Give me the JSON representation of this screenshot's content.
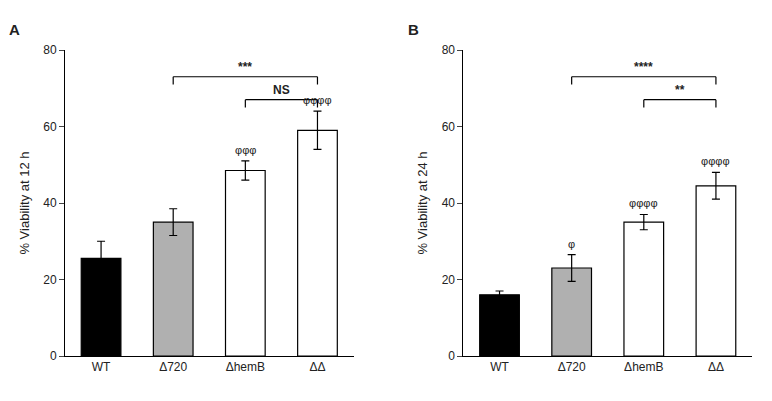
{
  "chart_data": [
    {
      "type": "bar",
      "title": "A",
      "categories": [
        "WT",
        "Δ720",
        "ΔhemB",
        "ΔΔ"
      ],
      "values": [
        25.5,
        35.0,
        48.5,
        59.0
      ],
      "errors": [
        4.5,
        3.5,
        2.5,
        5.0
      ],
      "colors": [
        "black",
        "#b0b0b0",
        "white",
        "white"
      ],
      "ylabel": "% Viability at 12 h",
      "ylim": [
        0,
        80
      ],
      "yticks": [
        0,
        20,
        40,
        60,
        80
      ],
      "grid": false,
      "annotations": [
        {
          "category": "ΔhemB",
          "text": "φφφ"
        },
        {
          "category": "ΔΔ",
          "text": "φφφφ"
        }
      ],
      "brackets": [
        {
          "from": "Δ720",
          "to": "ΔΔ",
          "y": 73,
          "label": "***"
        },
        {
          "from": "ΔhemB",
          "to": "ΔΔ",
          "y": 67,
          "label": "NS"
        }
      ]
    },
    {
      "type": "bar",
      "title": "B",
      "categories": [
        "WT",
        "Δ720",
        "ΔhemB",
        "ΔΔ"
      ],
      "values": [
        16.0,
        23.0,
        35.0,
        44.5
      ],
      "errors": [
        1.0,
        3.5,
        2.0,
        3.5
      ],
      "colors": [
        "black",
        "#b0b0b0",
        "white",
        "white"
      ],
      "ylabel": "% Viability at 24 h",
      "ylim": [
        0,
        80
      ],
      "yticks": [
        0,
        20,
        40,
        60,
        80
      ],
      "grid": false,
      "annotations": [
        {
          "category": "Δ720",
          "text": "φ"
        },
        {
          "category": "ΔhemB",
          "text": "φφφφ"
        },
        {
          "category": "ΔΔ",
          "text": "φφφφ"
        }
      ],
      "brackets": [
        {
          "from": "Δ720",
          "to": "ΔΔ",
          "y": 73,
          "label": "****"
        },
        {
          "from": "ΔhemB",
          "to": "ΔΔ",
          "y": 67,
          "label": "**"
        }
      ]
    }
  ]
}
